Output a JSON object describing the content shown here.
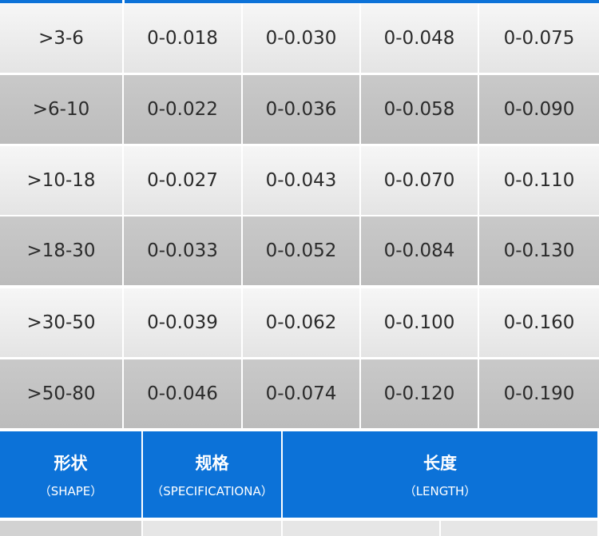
{
  "table": {
    "rows": [
      [
        ">3-6",
        "0-0.018",
        "0-0.030",
        "0-0.048",
        "0-0.075"
      ],
      [
        ">6-10",
        "0-0.022",
        "0-0.036",
        "0-0.058",
        "0-0.090"
      ],
      [
        ">10-18",
        "0-0.027",
        "0-0.043",
        "0-0.070",
        "0-0.110"
      ],
      [
        ">18-30",
        "0-0.033",
        "0-0.052",
        "0-0.084",
        "0-0.130"
      ],
      [
        ">30-50",
        "0-0.039",
        "0-0.062",
        "0-0.100",
        "0-0.160"
      ],
      [
        ">50-80",
        "0-0.046",
        "0-0.074",
        "0-0.120",
        "0-0.190"
      ]
    ]
  },
  "header": {
    "columns": [
      {
        "title": "形状",
        "subtitle": "（SHAPE）"
      },
      {
        "title": "规格",
        "subtitle": "（SPECIFICATIONA）"
      },
      {
        "title": "长度",
        "subtitle": "（LENGTH）"
      }
    ]
  }
}
